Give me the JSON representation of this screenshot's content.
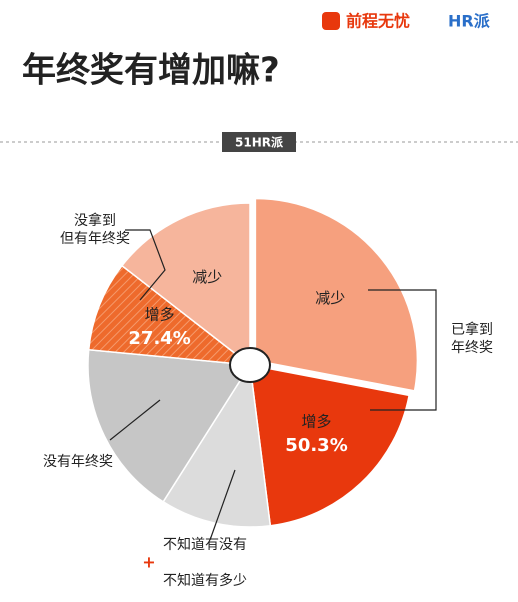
{
  "header": {
    "brand": "前程无忧",
    "brand2": "HR派"
  },
  "chart_data": {
    "type": "pie",
    "title": "年终奖有增加嘛?",
    "tag": "51HR派",
    "categories": [
      "减少",
      "增多",
      null,
      null,
      "增多",
      "减少"
    ],
    "values": [
      28,
      20,
      11,
      17.5,
      9,
      14.5
    ],
    "colors": [
      "#f6a07e",
      "#e8380d",
      "#dcdcdc",
      "#c6c6c6",
      "#ee6a2c",
      "#f6b59c"
    ],
    "percent_labels": [
      null,
      "50.3%",
      null,
      null,
      "27.4%",
      null
    ],
    "groups": [
      {
        "lines": [
          "已拿到",
          "年终奖"
        ]
      },
      {
        "lines": [
          "没拿到",
          "但有年终奖"
        ]
      },
      {
        "lines": [
          "没有年终奖"
        ]
      },
      {
        "lines": [
          "不知道有没有",
          "+",
          "不知道有多少"
        ]
      }
    ]
  }
}
